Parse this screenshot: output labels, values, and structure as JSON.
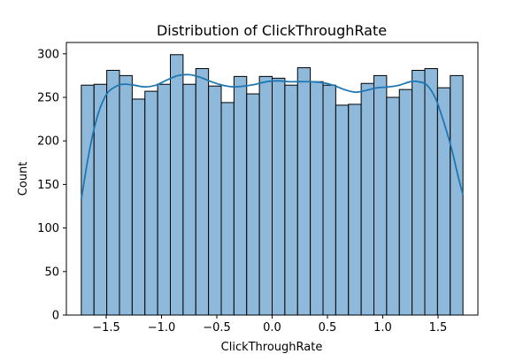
{
  "chart_data": {
    "type": "bar",
    "title": "Distribution of ClickThroughRate",
    "xlabel": "ClickThroughRate",
    "ylabel": "Count",
    "xlim": [
      -1.86,
      1.86
    ],
    "ylim": [
      0,
      313
    ],
    "xticks": [
      -1.5,
      -1.0,
      -0.5,
      0.0,
      0.5,
      1.0,
      1.5
    ],
    "xtick_labels": [
      "−1.5",
      "−1.0",
      "−0.5",
      "0.0",
      "0.5",
      "1.0",
      "1.5"
    ],
    "yticks": [
      0,
      50,
      100,
      150,
      200,
      250,
      300
    ],
    "ytick_labels": [
      "0",
      "50",
      "100",
      "150",
      "200",
      "250",
      "300"
    ],
    "bin_start": -1.725,
    "bin_end": 1.725,
    "counts": [
      264,
      265,
      281,
      275,
      248,
      257,
      265,
      299,
      265,
      283,
      263,
      244,
      274,
      254,
      274,
      272,
      264,
      284,
      268,
      264,
      241,
      242,
      266,
      275,
      250,
      259,
      281,
      283,
      261,
      275
    ],
    "kde": {
      "x": [
        -1.725,
        -1.65,
        -1.58,
        -1.5,
        -1.42,
        -1.35,
        -1.25,
        -1.15,
        -1.05,
        -0.95,
        -0.85,
        -0.75,
        -0.65,
        -0.55,
        -0.45,
        -0.35,
        -0.25,
        -0.15,
        -0.05,
        0.05,
        0.15,
        0.25,
        0.35,
        0.45,
        0.55,
        0.65,
        0.75,
        0.85,
        0.95,
        1.05,
        1.15,
        1.25,
        1.32,
        1.4,
        1.48,
        1.55,
        1.62,
        1.68,
        1.725
      ],
      "y": [
        133,
        190,
        228,
        253,
        262,
        265,
        264,
        262,
        264,
        270,
        275,
        276,
        273,
        268,
        264,
        262,
        263,
        265,
        268,
        269,
        268,
        268,
        268,
        267,
        264,
        259,
        256,
        258,
        261,
        262,
        264,
        268,
        268,
        264,
        248,
        222,
        192,
        160,
        138
      ]
    },
    "bar_fill": "#8fb9da",
    "bar_edge": "#000000",
    "kde_color": "#1f77b4",
    "grid": false,
    "legend": "none"
  }
}
